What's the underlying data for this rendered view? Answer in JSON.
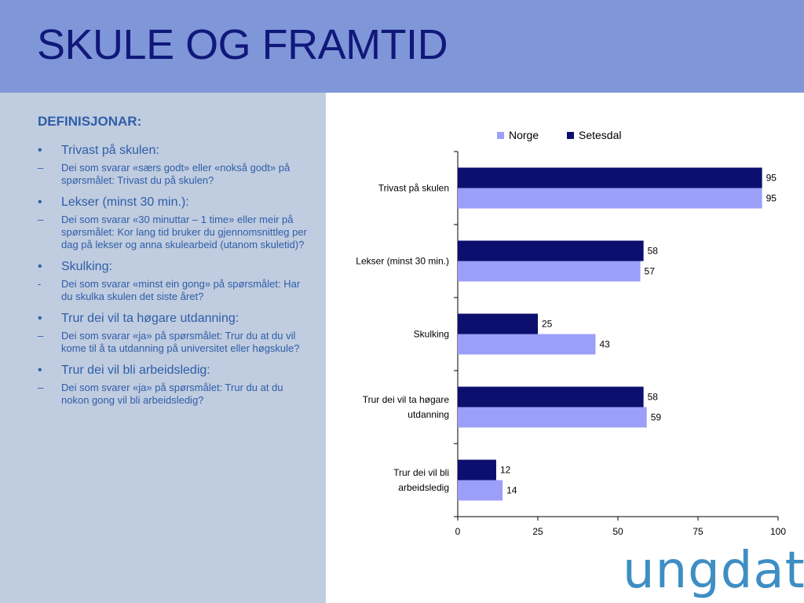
{
  "slide": {
    "title": "SKULE OG FRAMTID",
    "logo_text": "ungdata"
  },
  "definitions": {
    "heading": "DEFINISJONAR:",
    "items": [
      {
        "bullet": "•",
        "title": "Trivast på skulen:",
        "desc_marker": "–",
        "desc": "Dei som svarar «særs godt» eller «nokså godt» på spørsmålet: Trivast du på skulen?"
      },
      {
        "bullet": "•",
        "title": "Lekser (minst 30 min.):",
        "desc_marker": "–",
        "desc": "Dei som svarar «30 minuttar – 1 time» eller meir på spørsmålet: Kor lang tid bruker du gjennomsnittleg per dag på lekser og anna skulearbeid (utanom skuletid)?"
      },
      {
        "bullet": "•",
        "title": "Skulking:",
        "desc_marker": "-",
        "desc": "Dei som svarar «minst ein gong» på spørsmålet: Har du skulka skulen det siste året?"
      },
      {
        "bullet": "•",
        "title": "Trur dei vil ta høgare utdanning:",
        "desc_marker": "–",
        "desc": "Dei som svarar «ja» på spørsmålet: Trur du at du vil kome til å ta utdanning på universitet eller høgskule?"
      },
      {
        "bullet": "•",
        "title": "Trur dei vil bli arbeidsledig:",
        "desc_marker": "–",
        "desc": "Dei som svarer «ja» på spørsmålet: Trur du at du nokon gong vil bli arbeidsledig?"
      }
    ]
  },
  "chart_data": {
    "type": "bar",
    "orientation": "horizontal",
    "categories": [
      [
        "Trivast på skulen"
      ],
      [
        "Lekser (minst 30 min.)"
      ],
      [
        "Skulking"
      ],
      [
        "Trur dei vil ta høgare",
        "utdanning"
      ],
      [
        "Trur dei vil bli",
        "arbeidsledig"
      ]
    ],
    "series": [
      {
        "name": "Setesdal",
        "color": "#0c0f6e",
        "values": [
          95,
          58,
          25,
          58,
          12
        ]
      },
      {
        "name": "Norge",
        "color": "#9b9ff8",
        "values": [
          95,
          57,
          43,
          59,
          14
        ]
      }
    ],
    "legend_order": [
      "Norge",
      "Setesdal"
    ],
    "xlim": [
      0,
      100
    ],
    "xticks": [
      0,
      25,
      50,
      75,
      100
    ],
    "legend": "top",
    "grid": false,
    "data_labels": true
  }
}
